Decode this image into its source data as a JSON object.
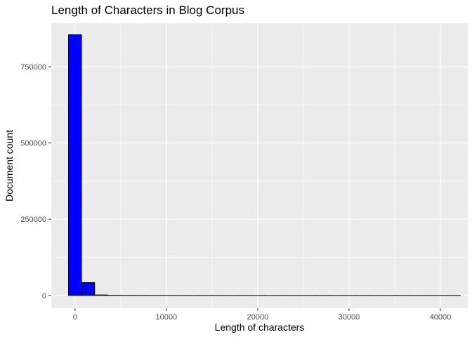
{
  "chart_data": {
    "type": "bar",
    "subtype": "histogram",
    "title": "Length of Characters in Blog Corpus",
    "xlabel": "Length of characters",
    "ylabel": "Document count",
    "xlim": [
      -2600,
      43000
    ],
    "ylim": [
      -42000,
      893000
    ],
    "x_ticks": [
      0,
      10000,
      20000,
      30000,
      40000
    ],
    "y_ticks": [
      0,
      250000,
      500000,
      750000
    ],
    "grid": true,
    "legend": "none",
    "bin_width": 1430,
    "bins": [
      {
        "x": 0,
        "count": 855000
      },
      {
        "x": 1430,
        "count": 42000
      },
      {
        "x": 2860,
        "count": 1500
      },
      {
        "x": 4290,
        "count": 400
      },
      {
        "x": 5720,
        "count": 200
      },
      {
        "x": 7150,
        "count": 100
      },
      {
        "x": 8580,
        "count": 60
      },
      {
        "x": 10010,
        "count": 40
      },
      {
        "x": 11440,
        "count": 25
      },
      {
        "x": 12870,
        "count": 15
      },
      {
        "x": 14300,
        "count": 10
      },
      {
        "x": 15730,
        "count": 8
      },
      {
        "x": 17160,
        "count": 6
      },
      {
        "x": 18590,
        "count": 5
      },
      {
        "x": 20020,
        "count": 4
      },
      {
        "x": 21450,
        "count": 3
      },
      {
        "x": 22880,
        "count": 3
      },
      {
        "x": 24310,
        "count": 2
      },
      {
        "x": 25740,
        "count": 2
      },
      {
        "x": 27170,
        "count": 2
      },
      {
        "x": 28600,
        "count": 1
      },
      {
        "x": 30030,
        "count": 1
      },
      {
        "x": 31460,
        "count": 1
      },
      {
        "x": 32890,
        "count": 1
      },
      {
        "x": 34320,
        "count": 1
      },
      {
        "x": 35750,
        "count": 1
      },
      {
        "x": 37180,
        "count": 1
      },
      {
        "x": 38610,
        "count": 1
      },
      {
        "x": 40040,
        "count": 1
      },
      {
        "x": 41470,
        "count": 1
      }
    ],
    "colors": {
      "bar_fill": "#0000ff",
      "bar_stroke": "#000000",
      "panel_bg": "#ebebeb",
      "grid": "#ffffff"
    }
  }
}
